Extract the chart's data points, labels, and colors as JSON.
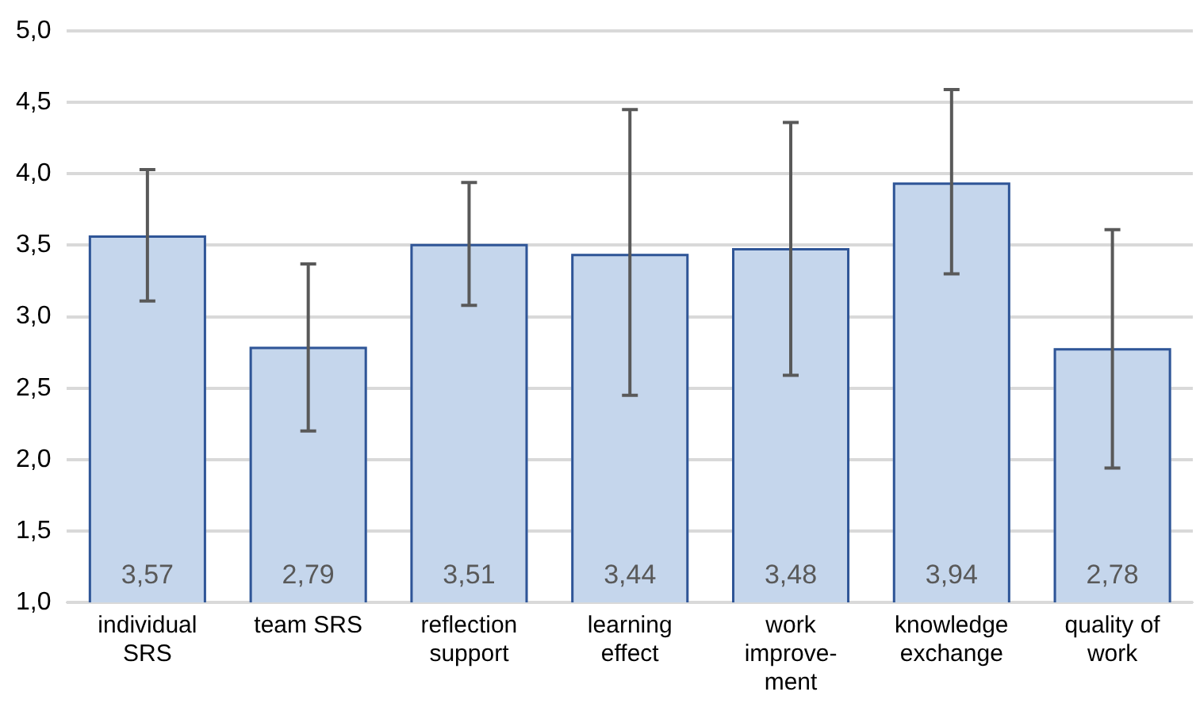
{
  "chart_data": {
    "type": "bar",
    "categories": [
      "individual\nSRS",
      "team SRS",
      "reflection\nsupport",
      "learning\neffect",
      "work\nimprove-\nment",
      "knowledge\nexchange",
      "quality of\nwork"
    ],
    "values": [
      3.57,
      2.79,
      3.51,
      3.44,
      3.48,
      3.94,
      2.78
    ],
    "errors": [
      [
        3.11,
        4.03
      ],
      [
        2.2,
        3.37
      ],
      [
        3.08,
        3.94
      ],
      [
        2.45,
        4.45
      ],
      [
        2.59,
        4.36
      ],
      [
        3.3,
        4.59
      ],
      [
        1.94,
        3.61
      ]
    ],
    "color": "#c5d6ec",
    "ylim": [
      1,
      5
    ],
    "yticks": [
      {
        "value": 1,
        "label": "1,0"
      },
      {
        "value": 1.5,
        "label": "1,5"
      },
      {
        "value": 2,
        "label": "2,0"
      },
      {
        "value": 2.5,
        "label": "2,5"
      },
      {
        "value": 3,
        "label": "3,0"
      },
      {
        "value": 3.5,
        "label": "3,5"
      },
      {
        "value": 4,
        "label": "4,0"
      },
      {
        "value": 4.5,
        "label": "4,5"
      },
      {
        "value": 5,
        "label": "5,0"
      }
    ],
    "grid": "y",
    "legend": false,
    "value_labels": [
      "3,57",
      "2,79",
      "3,51",
      "3,44",
      "3,48",
      "3,94",
      "2,78"
    ]
  }
}
